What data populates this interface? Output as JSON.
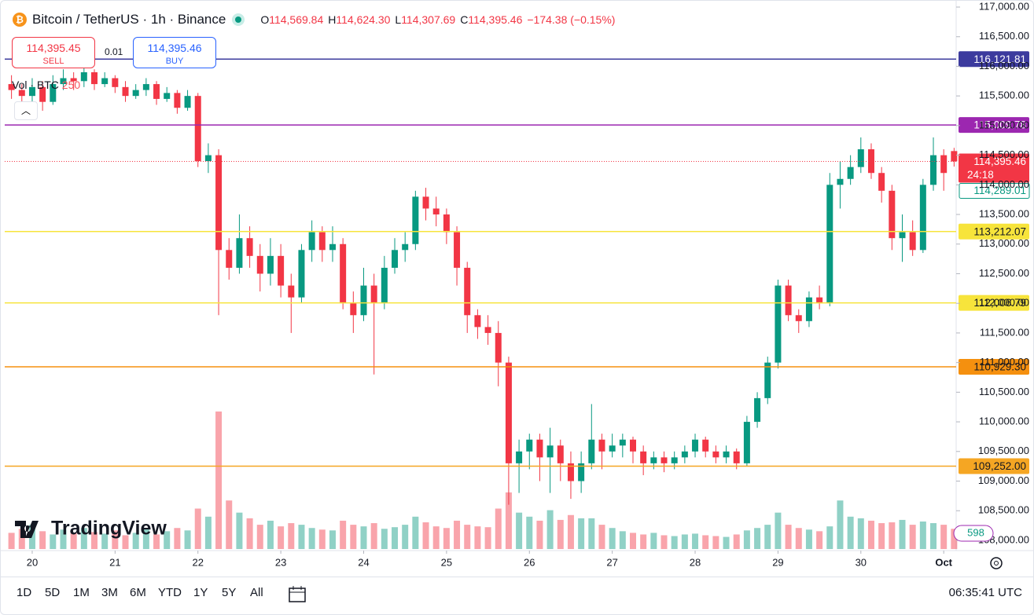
{
  "header": {
    "symbol": "Bitcoin / TetherUS · 1h · Binance",
    "ohlc": [
      {
        "key": "O",
        "value": "114,569.84"
      },
      {
        "key": "H",
        "value": "114,624.30"
      },
      {
        "key": "L",
        "value": "114,307.69"
      },
      {
        "key": "C",
        "value": "114,395.46"
      }
    ],
    "change": "−174.38 (−0.15%)"
  },
  "trade": {
    "sell_price": "114,395.45",
    "sell": "SELL",
    "size": "0.01",
    "buy_price": "114,395.46",
    "buy": "BUY"
  },
  "volume_legend": "Vol · BTC",
  "logo": "TradingView",
  "toolbar": {
    "ranges": [
      "1D",
      "5D",
      "1M",
      "3M",
      "6M",
      "YTD",
      "1Y",
      "5Y",
      "All"
    ],
    "clock": "06:35:41 UTC"
  },
  "chart_data": {
    "type": "candlestick",
    "up_color": "#089981",
    "down_color": "#f23645",
    "grid": false,
    "xlim": [
      -9.1,
      267.6
    ],
    "xticks": [
      {
        "value": 0,
        "label": "20"
      },
      {
        "value": 24,
        "label": "21"
      },
      {
        "value": 48,
        "label": "22"
      },
      {
        "value": 72,
        "label": "23"
      },
      {
        "value": 96,
        "label": "24"
      },
      {
        "value": 120,
        "label": "25"
      },
      {
        "value": 144,
        "label": "26"
      },
      {
        "value": 168,
        "label": "27"
      },
      {
        "value": 192,
        "label": "28"
      },
      {
        "value": 216,
        "label": "29"
      },
      {
        "value": 240,
        "label": "30"
      },
      {
        "value": 264,
        "label": "Oct"
      }
    ],
    "ylim": [
      107827,
      117106
    ],
    "yticks": [
      {
        "value": 108000,
        "label": "108,000.00"
      },
      {
        "value": 108500,
        "label": "108,500.00"
      },
      {
        "value": 109000,
        "label": "109,000.00"
      },
      {
        "value": 109500,
        "label": "109,500.00"
      },
      {
        "value": 110000,
        "label": "110,000.00"
      },
      {
        "value": 110500,
        "label": "110,500.00"
      },
      {
        "value": 111000,
        "label": "111,000.00"
      },
      {
        "value": 111500,
        "label": "111,500.00"
      },
      {
        "value": 112000,
        "label": "112,000.00"
      },
      {
        "value": 112500,
        "label": "112,500.00"
      },
      {
        "value": 113000,
        "label": "113,000.00"
      },
      {
        "value": 113500,
        "label": "113,500.00"
      },
      {
        "value": 114000,
        "label": "114,000.00"
      },
      {
        "value": 114500,
        "label": "114,500.00"
      },
      {
        "value": 115000,
        "label": "115,000.00"
      },
      {
        "value": 115500,
        "label": "115,500.00"
      },
      {
        "value": 116000,
        "label": "116,000.00"
      },
      {
        "value": 116500,
        "label": "116,500.00"
      },
      {
        "value": 117000,
        "label": "117,000.00"
      }
    ],
    "x": [
      -6,
      -3,
      0,
      3,
      6,
      9,
      12,
      15,
      18,
      21,
      24,
      27,
      30,
      33,
      36,
      39,
      42,
      45,
      48,
      51,
      54,
      57,
      60,
      63,
      66,
      69,
      72,
      75,
      78,
      81,
      84,
      87,
      90,
      93,
      96,
      99,
      102,
      105,
      108,
      111,
      114,
      117,
      120,
      123,
      126,
      129,
      132,
      135,
      138,
      141,
      144,
      147,
      150,
      153,
      156,
      159,
      162,
      165,
      168,
      171,
      174,
      177,
      180,
      183,
      186,
      189,
      192,
      195,
      198,
      201,
      204,
      207,
      210,
      213,
      216,
      219,
      222,
      225,
      228,
      231,
      234,
      237,
      240,
      243,
      246,
      249,
      252,
      255,
      258,
      261,
      264,
      267
    ],
    "ohlc": [
      [
        115700,
        115850,
        115450,
        115600
      ],
      [
        115600,
        115700,
        115300,
        115500
      ],
      [
        115500,
        115800,
        115400,
        115650
      ],
      [
        115650,
        115750,
        115250,
        115400
      ],
      [
        115400,
        115850,
        115350,
        115700
      ],
      [
        115700,
        115950,
        115600,
        115800
      ],
      [
        115800,
        115900,
        115600,
        115750
      ],
      [
        115750,
        116000,
        115650,
        115900
      ],
      [
        115900,
        115950,
        115600,
        115700
      ],
      [
        115700,
        115900,
        115650,
        115800
      ],
      [
        115800,
        115850,
        115550,
        115650
      ],
      [
        115650,
        115750,
        115400,
        115500
      ],
      [
        115500,
        115700,
        115450,
        115600
      ],
      [
        115600,
        115800,
        115500,
        115700
      ],
      [
        115700,
        115750,
        115350,
        115450
      ],
      [
        115450,
        115650,
        115400,
        115550
      ],
      [
        115550,
        115600,
        115200,
        115300
      ],
      [
        115300,
        115600,
        115250,
        115500
      ],
      [
        115500,
        115550,
        114300,
        114400
      ],
      [
        114400,
        114700,
        114200,
        114500
      ],
      [
        114500,
        114600,
        111800,
        112900
      ],
      [
        112900,
        113100,
        112400,
        112600
      ],
      [
        112600,
        113500,
        112500,
        113100
      ],
      [
        113100,
        113300,
        112600,
        112800
      ],
      [
        112800,
        113000,
        112200,
        112500
      ],
      [
        112500,
        113100,
        112300,
        112800
      ],
      [
        112800,
        113000,
        112100,
        112300
      ],
      [
        112300,
        112500,
        111500,
        112100
      ],
      [
        112100,
        113000,
        112000,
        112900
      ],
      [
        112900,
        113400,
        112700,
        113200
      ],
      [
        113200,
        113300,
        112700,
        112900
      ],
      [
        112900,
        113300,
        112700,
        113000
      ],
      [
        113000,
        113100,
        111900,
        112000
      ],
      [
        112000,
        112200,
        111500,
        111800
      ],
      [
        111800,
        112600,
        111700,
        112300
      ],
      [
        112300,
        112500,
        110800,
        112000
      ],
      [
        112000,
        112800,
        111900,
        112600
      ],
      [
        112600,
        113100,
        112500,
        112900
      ],
      [
        112900,
        113200,
        112700,
        113000
      ],
      [
        113000,
        113900,
        112900,
        113800
      ],
      [
        113800,
        113950,
        113400,
        113600
      ],
      [
        113600,
        113800,
        113300,
        113500
      ],
      [
        113500,
        113600,
        113000,
        113200
      ],
      [
        113200,
        113300,
        112300,
        112600
      ],
      [
        112600,
        112700,
        111500,
        111800
      ],
      [
        111800,
        111900,
        111400,
        111600
      ],
      [
        111600,
        111800,
        111300,
        111500
      ],
      [
        111500,
        111700,
        110600,
        111000
      ],
      [
        111000,
        111100,
        108600,
        109300
      ],
      [
        109300,
        109700,
        108800,
        109500
      ],
      [
        109500,
        109800,
        109200,
        109700
      ],
      [
        109700,
        109800,
        109000,
        109400
      ],
      [
        109400,
        109900,
        108800,
        109600
      ],
      [
        109600,
        109700,
        109000,
        109300
      ],
      [
        109300,
        109500,
        108700,
        109000
      ],
      [
        109000,
        109500,
        108800,
        109300
      ],
      [
        109300,
        110300,
        109200,
        109700
      ],
      [
        109700,
        109800,
        109200,
        109500
      ],
      [
        109500,
        109800,
        109400,
        109600
      ],
      [
        109600,
        109800,
        109400,
        109700
      ],
      [
        109700,
        109750,
        109300,
        109500
      ],
      [
        109500,
        109600,
        109100,
        109300
      ],
      [
        109300,
        109500,
        109200,
        109400
      ],
      [
        109400,
        109500,
        109150,
        109300
      ],
      [
        109300,
        109500,
        109200,
        109400
      ],
      [
        109400,
        109600,
        109300,
        109500
      ],
      [
        109500,
        109800,
        109400,
        109700
      ],
      [
        109700,
        109750,
        109400,
        109500
      ],
      [
        109500,
        109600,
        109300,
        109400
      ],
      [
        109400,
        109600,
        109300,
        109500
      ],
      [
        109500,
        109550,
        109200,
        109300
      ],
      [
        109300,
        110100,
        109250,
        110000
      ],
      [
        110000,
        110500,
        109900,
        110400
      ],
      [
        110400,
        111100,
        110300,
        111000
      ],
      [
        111000,
        112400,
        110900,
        112300
      ],
      [
        112300,
        112400,
        111700,
        111800
      ],
      [
        111800,
        111900,
        111500,
        111700
      ],
      [
        111700,
        112200,
        111600,
        112100
      ],
      [
        112100,
        112300,
        111900,
        112000
      ],
      [
        112000,
        114200,
        111950,
        114000
      ],
      [
        114000,
        114400,
        113600,
        114100
      ],
      [
        114100,
        114500,
        114000,
        114300
      ],
      [
        114300,
        114800,
        114200,
        114600
      ],
      [
        114600,
        114700,
        114100,
        114200
      ],
      [
        114200,
        114300,
        113700,
        113900
      ],
      [
        113900,
        114000,
        112900,
        113100
      ],
      [
        113100,
        113500,
        112700,
        113200
      ],
      [
        113200,
        113400,
        112800,
        112900
      ],
      [
        112900,
        114100,
        112850,
        114000
      ],
      [
        114000,
        114800,
        113900,
        114500
      ],
      [
        114500,
        114600,
        113900,
        114200
      ],
      [
        114569.84,
        114624.3,
        114307.69,
        114395.46
      ]
    ],
    "volume": [
      200,
      250,
      300,
      220,
      180,
      240,
      200,
      260,
      210,
      190,
      230,
      170,
      200,
      250,
      180,
      220,
      260,
      230,
      500,
      400,
      1700,
      600,
      450,
      380,
      300,
      350,
      280,
      320,
      300,
      260,
      240,
      230,
      350,
      300,
      280,
      320,
      250,
      270,
      300,
      400,
      330,
      280,
      260,
      350,
      300,
      280,
      270,
      500,
      700,
      450,
      400,
      350,
      480,
      360,
      420,
      380,
      380,
      300,
      260,
      220,
      200,
      180,
      200,
      170,
      160,
      180,
      190,
      170,
      160,
      150,
      180,
      230,
      260,
      300,
      450,
      300,
      260,
      240,
      220,
      280,
      600,
      400,
      380,
      350,
      320,
      330,
      360,
      300,
      340,
      320,
      300,
      250
    ],
    "volume_lim": [
      0,
      2000
    ],
    "volume_scale_label": 598,
    "levels": [
      {
        "value": 116121.81,
        "label": "116,121.81",
        "color": "#3c3b9e",
        "text_color": "#ffffff"
      },
      {
        "value": 115009.78,
        "label": "115,009.78",
        "color": "#9c27b0",
        "text_color": "#ffffff"
      },
      {
        "value": 113212.07,
        "label": "113,212.07",
        "color": "#f7e43b",
        "text_color": "#131722"
      },
      {
        "value": 112006.79,
        "label": "112,006.79",
        "color": "#f7e43b",
        "text_color": "#131722"
      },
      {
        "value": 110929.3,
        "label": "110,929.30",
        "color": "#f5900f",
        "text_color": "#131722"
      },
      {
        "value": 109252.0,
        "label": "109,252.00",
        "color": "#f5a623",
        "text_color": "#131722"
      }
    ],
    "last_price": {
      "value": 114395.46,
      "label": "114,395.46",
      "countdown": "24:18",
      "color": "#f23645"
    },
    "bid_marker": {
      "value": 114289.01,
      "label": "114,289.01",
      "color": "#089981"
    }
  }
}
